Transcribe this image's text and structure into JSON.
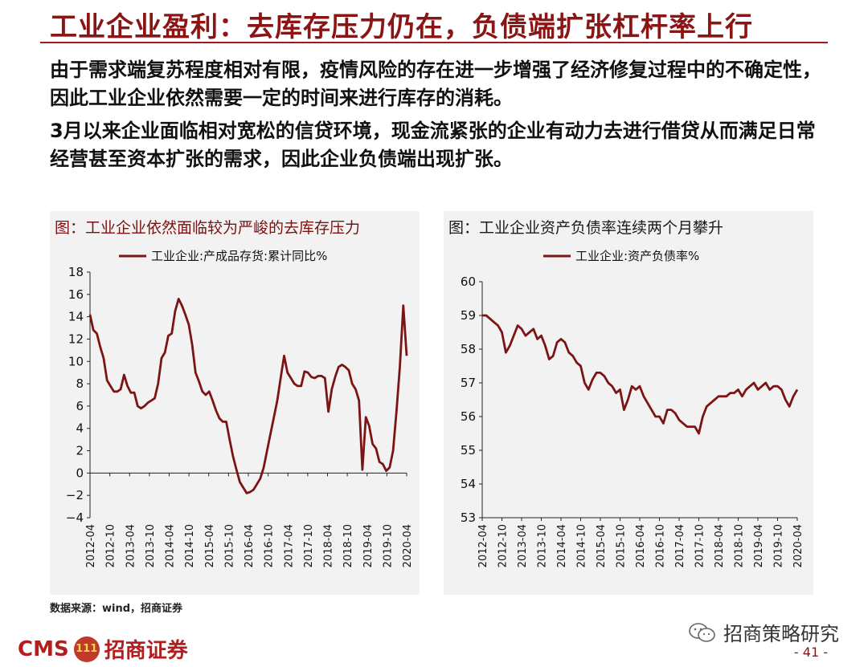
{
  "header": {
    "title": "工业企业盈利：去库存压力仍在，负债端扩张杠杆率上行"
  },
  "paragraphs": {
    "p1": "由于需求端复苏程度相对有限，疫情风险的存在进一步增强了经济修复过程中的不确定性，因此工业企业依然需要一定的时间来进行库存的消耗。",
    "p2": "3月以来企业面临相对宽松的信贷环境，现金流紧张的企业有动力去进行借贷从而满足日常经营甚至资本扩张的需求，因此企业负债端出现扩张。"
  },
  "colors": {
    "accent": "#8b1414",
    "line": "#7b1414",
    "panel": "#f2f2f2"
  },
  "chart_data": [
    {
      "type": "line",
      "title": "图：工业企业依然面临较为严峻的去库存压力",
      "legend_position": "top",
      "x_tick_labels": [
        "2012-04",
        "2012-10",
        "2013-04",
        "2013-10",
        "2014-04",
        "2014-10",
        "2015-04",
        "2015-10",
        "2016-04",
        "2016-10",
        "2017-04",
        "2017-10",
        "2018-04",
        "2018-10",
        "2019-04",
        "2019-10",
        "2020-04"
      ],
      "ylim": [
        -4,
        18
      ],
      "y_ticks": [
        -4,
        -2,
        0,
        2,
        4,
        6,
        8,
        10,
        12,
        14,
        16,
        18
      ],
      "grid": false,
      "series": [
        {
          "name": "工业企业:产成品存货:累计同比%",
          "values": [
            14.2,
            12.8,
            12.5,
            11.3,
            10.3,
            8.3,
            7.8,
            7.3,
            7.3,
            7.5,
            8.8,
            7.8,
            7.2,
            7.2,
            6.0,
            5.8,
            6.0,
            6.3,
            6.5,
            6.7,
            8.0,
            10.3,
            10.8,
            12.3,
            12.5,
            14.5,
            15.6,
            15.0,
            14.2,
            13.3,
            11.5,
            9.0,
            8.2,
            7.3,
            7.0,
            7.3,
            6.5,
            5.6,
            4.9,
            4.6,
            4.6,
            3.0,
            1.5,
            0.3,
            -0.8,
            -1.3,
            -1.8,
            -1.7,
            -1.5,
            -1.0,
            -0.5,
            0.5,
            2.0,
            3.5,
            5.0,
            6.5,
            8.5,
            10.5,
            9.0,
            8.5,
            8.0,
            7.8,
            7.8,
            9.1,
            9.0,
            8.6,
            8.5,
            8.7,
            8.7,
            8.5,
            5.5,
            7.5,
            8.6,
            9.5,
            9.7,
            9.5,
            9.2,
            8.0,
            7.5,
            6.5,
            0.3,
            5.0,
            4.2,
            2.6,
            2.2,
            1.0,
            0.8,
            0.2,
            0.5,
            2.0,
            5.5,
            9.5,
            15.0,
            10.5
          ]
        }
      ]
    },
    {
      "type": "line",
      "title": "图：工业企业资产负债率连续两个月攀升",
      "legend_position": "top",
      "x_tick_labels": [
        "2012-04",
        "2012-10",
        "2013-04",
        "2013-10",
        "2014-04",
        "2014-10",
        "2015-04",
        "2015-10",
        "2016-04",
        "2016-10",
        "2017-04",
        "2017-10",
        "2018-04",
        "2018-10",
        "2019-04",
        "2019-10",
        "2020-04"
      ],
      "ylim": [
        53,
        60
      ],
      "y_ticks": [
        53,
        54,
        55,
        56,
        57,
        58,
        59,
        60
      ],
      "grid": false,
      "series": [
        {
          "name": "工业企业:资产负债率%",
          "values": [
            59.0,
            59.0,
            58.9,
            58.8,
            58.7,
            58.5,
            57.9,
            58.1,
            58.4,
            58.7,
            58.6,
            58.4,
            58.5,
            58.6,
            58.3,
            58.4,
            58.1,
            57.7,
            57.8,
            58.2,
            58.3,
            58.2,
            57.9,
            57.8,
            57.6,
            57.5,
            57.0,
            56.8,
            57.1,
            57.3,
            57.3,
            57.2,
            57.0,
            56.9,
            56.7,
            56.8,
            56.2,
            56.5,
            56.9,
            56.8,
            56.9,
            56.6,
            56.4,
            56.2,
            56.0,
            56.0,
            55.8,
            56.2,
            56.2,
            56.1,
            55.9,
            55.8,
            55.7,
            55.7,
            55.7,
            55.5,
            56.0,
            56.3,
            56.4,
            56.5,
            56.6,
            56.6,
            56.6,
            56.7,
            56.7,
            56.8,
            56.6,
            56.8,
            56.9,
            57.0,
            56.8,
            56.9,
            57.0,
            56.8,
            56.9,
            56.9,
            56.8,
            56.5,
            56.3,
            56.6,
            56.8
          ]
        }
      ]
    }
  ],
  "footer": {
    "source": "数据来源：wind，招商证券",
    "logo_cms": "CMS",
    "logo_badge": "111",
    "logo_cn": "招商证券",
    "watermark": "招商策略研究",
    "page_number": "- 41 -"
  }
}
